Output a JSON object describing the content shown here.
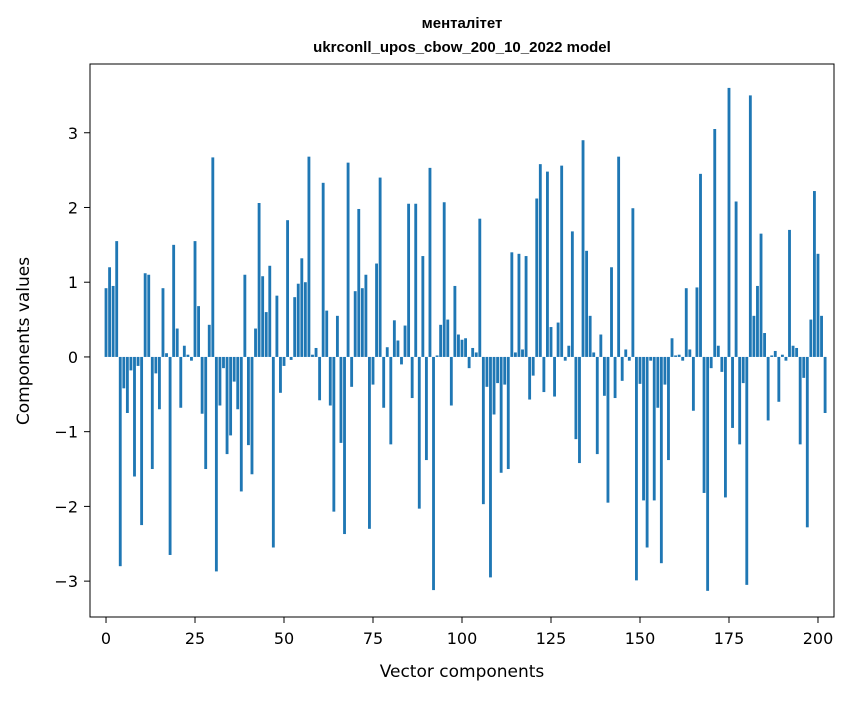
{
  "chart_data": {
    "type": "bar",
    "title_line1": "менталітет",
    "title_line2": "ukrconll_upos_cbow_200_10_2022 model",
    "xlabel": "Vector components",
    "ylabel": "Components values",
    "xlim": [
      -4.5,
      204.5
    ],
    "ylim": [
      -3.48,
      3.92
    ],
    "xticks": [
      0,
      25,
      50,
      75,
      100,
      125,
      150,
      175,
      200
    ],
    "yticks": [
      -3,
      -2,
      -1,
      0,
      1,
      2,
      3
    ],
    "bar_color": "#1f77b4",
    "values": [
      0.92,
      1.2,
      0.95,
      1.55,
      -2.8,
      -0.42,
      -0.75,
      -0.18,
      -1.6,
      -0.12,
      -2.25,
      1.12,
      1.1,
      -1.5,
      -0.22,
      -0.7,
      0.92,
      0.05,
      -2.65,
      1.5,
      0.38,
      -0.68,
      0.15,
      0.03,
      -0.05,
      1.55,
      0.68,
      -0.76,
      -1.5,
      0.43,
      2.67,
      -2.87,
      -0.65,
      -0.15,
      -1.3,
      -1.05,
      -0.33,
      -0.7,
      -1.8,
      1.1,
      -1.18,
      -1.57,
      0.38,
      2.06,
      1.08,
      0.6,
      1.22,
      -2.55,
      0.82,
      -0.48,
      -0.12,
      1.83,
      -0.04,
      0.8,
      0.98,
      1.32,
      1.0,
      2.68,
      0.03,
      0.12,
      -0.58,
      2.33,
      0.62,
      -0.65,
      -2.07,
      0.55,
      -1.15,
      -2.37,
      2.6,
      -0.4,
      0.88,
      1.98,
      0.92,
      1.1,
      -2.3,
      -0.37,
      1.25,
      2.4,
      -0.68,
      0.13,
      -1.17,
      0.49,
      0.22,
      -0.1,
      0.42,
      2.05,
      -0.55,
      2.05,
      -2.03,
      1.35,
      -1.38,
      2.53,
      -3.12,
      0.02,
      0.43,
      2.07,
      0.5,
      -0.65,
      0.95,
      0.3,
      0.23,
      0.25,
      -0.15,
      0.12,
      0.06,
      1.85,
      -1.97,
      -0.4,
      -2.95,
      -0.77,
      -0.35,
      -1.55,
      -0.37,
      -1.5,
      1.4,
      0.06,
      1.38,
      0.1,
      1.35,
      -0.57,
      -0.25,
      2.12,
      2.58,
      -0.47,
      2.48,
      0.4,
      -0.53,
      0.46,
      2.56,
      -0.05,
      0.15,
      1.68,
      -1.1,
      -1.42,
      2.9,
      1.42,
      0.55,
      0.06,
      -1.3,
      0.3,
      -0.52,
      -1.95,
      1.2,
      -0.55,
      2.68,
      -0.32,
      0.1,
      -0.05,
      1.99,
      -2.99,
      -0.36,
      -1.92,
      -2.55,
      -0.05,
      -1.92,
      -0.68,
      -2.76,
      -0.37,
      -1.38,
      0.25,
      0.02,
      0.03,
      -0.05,
      0.92,
      0.1,
      -0.72,
      0.93,
      2.45,
      -1.82,
      -3.13,
      -0.15,
      3.05,
      0.15,
      -0.2,
      -1.88,
      3.6,
      -0.95,
      2.08,
      -1.17,
      -0.35,
      -3.05,
      3.5,
      0.55,
      0.95,
      1.65,
      0.32,
      -0.85,
      0.02,
      0.08,
      -0.6,
      0.03,
      -0.05,
      1.7,
      0.15,
      0.12,
      -1.17,
      -0.28,
      -2.28,
      0.5,
      2.22,
      1.38,
      0.55,
      -0.75
    ]
  }
}
